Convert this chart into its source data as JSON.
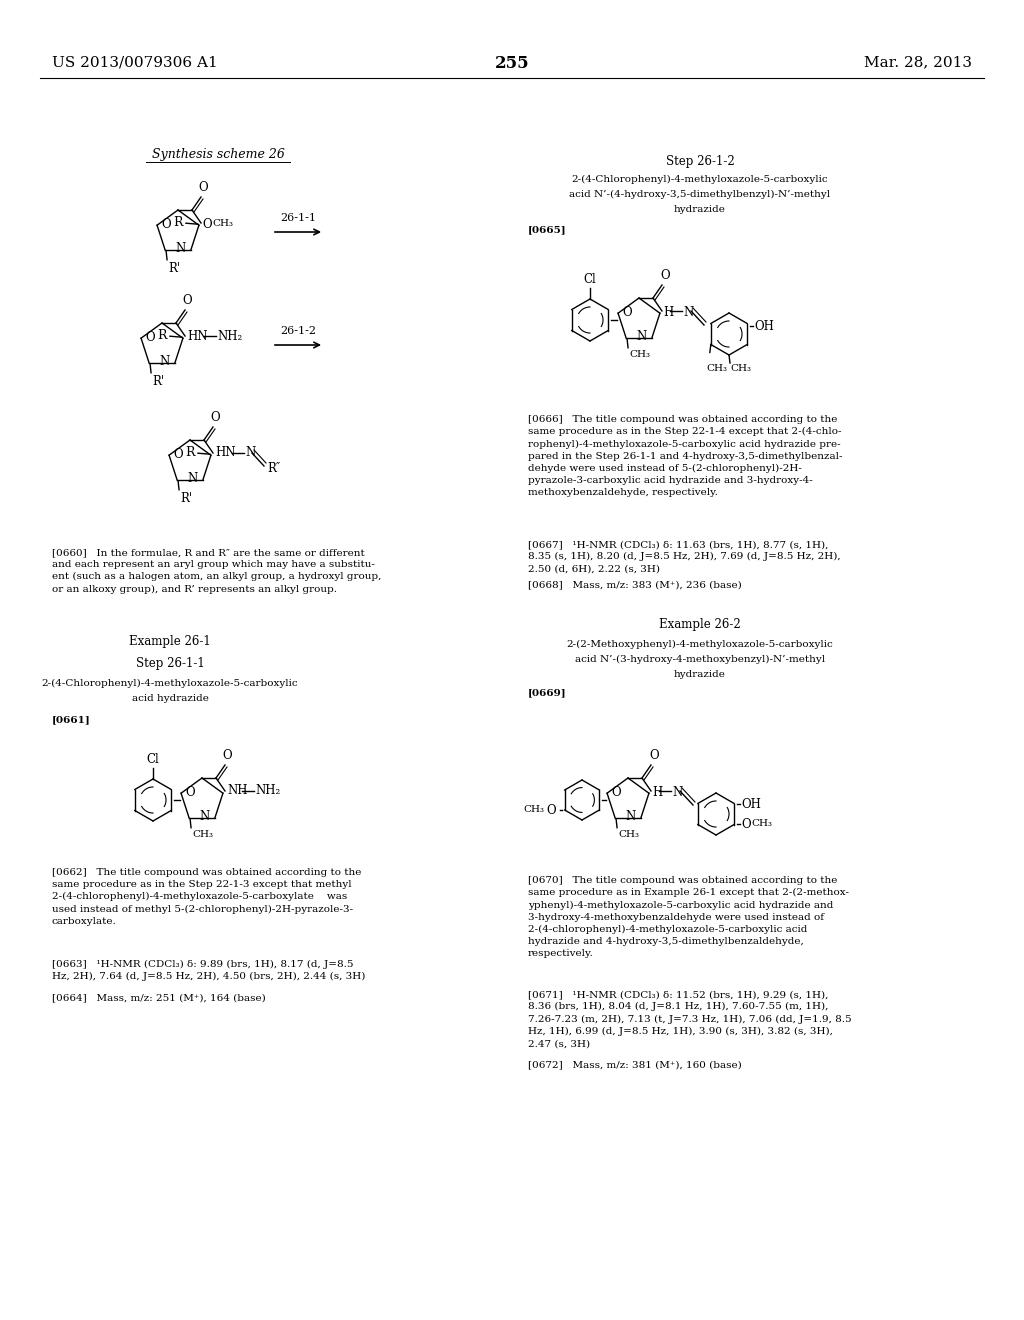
{
  "page_number": "255",
  "patent_number": "US 2013/0079306 A1",
  "patent_date": "Mar. 28, 2013",
  "background_color": "#ffffff",
  "text_color": "#000000",
  "header_left": "US 2013/0079306 A1",
  "header_center": "255",
  "header_right": "Mar. 28, 2013",
  "synthesis_scheme_label": "Synthesis scheme 26",
  "step_label_1": "26-1-1",
  "step_label_2": "26-1-2",
  "right_step_label": "Step 26-1-2",
  "right_compound_title_1": "2-(4-Chlorophenyl)-4-methyloxazole-5-carboxylic",
  "right_compound_title_2": "acid N’-(4-hydroxy-3,5-dimethylbenzyl)-N’-methyl",
  "right_compound_title_3": "hydrazide",
  "para_0665": "[0665]",
  "para_0666": "[0666]   The title compound was obtained according to the\nsame procedure as in the Step 22-1-4 except that 2-(4-chlo-\nrophenyl)-4-methyloxazole-5-carboxylic acid hydrazide pre-\npared in the Step 26-1-1 and 4-hydroxy-3,5-dimethylbenzal-\ndehyde were used instead of 5-(2-chlorophenyl)-2H-\npyrazole-3-carboxylic acid hydrazide and 3-hydroxy-4-\nmethoxybenzaldehyde, respectively.",
  "para_0667": "[0667]   ¹H-NMR (CDCl₃) δ: 11.63 (brs, 1H), 8.77 (s, 1H),\n8.35 (s, 1H), 8.20 (d, J=8.5 Hz, 2H), 7.69 (d, J=8.5 Hz, 2H),\n2.50 (d, 6H), 2.22 (s, 3H)",
  "para_0668": "[0668]   Mass, m/z: 383 (M⁺), 236 (base)",
  "example_26_2_label": "Example 26-2",
  "example_26_2_title_1": "2-(2-Methoxyphenyl)-4-methyloxazole-5-carboxylic",
  "example_26_2_title_2": "acid N’-(3-hydroxy-4-methoxybenzyl)-N’-methyl",
  "example_26_2_title_3": "hydrazide",
  "para_0669": "[0669]",
  "para_0670": "[0670]   The title compound was obtained according to the\nsame procedure as in Example 26-1 except that 2-(2-methox-\nyphenyl)-4-methyloxazole-5-carboxylic acid hydrazide and\n3-hydroxy-4-methoxybenzaldehyde were used instead of\n2-(4-chlorophenyl)-4-methyloxazole-5-carboxylic acid\nhydrazide and 4-hydroxy-3,5-dimethylbenzaldehyde,\nrespectively.",
  "para_0671": "[0671]   ¹H-NMR (CDCl₃) δ: 11.52 (brs, 1H), 9.29 (s, 1H),\n8.36 (brs, 1H), 8.04 (d, J=8.1 Hz, 1H), 7.60-7.55 (m, 1H),\n7.26-7.23 (m, 2H), 7.13 (t, J=7.3 Hz, 1H), 7.06 (dd, J=1.9, 8.5\nHz, 1H), 6.99 (d, J=8.5 Hz, 1H), 3.90 (s, 3H), 3.82 (s, 3H),\n2.47 (s, 3H)",
  "para_0672": "[0672]   Mass, m/z: 381 (M⁺), 160 (base)",
  "example_26_1_label": "Example 26-1",
  "step_26_1_1_label": "Step 26-1-1",
  "compound_step1_1": "2-(4-Chlorophenyl)-4-methyloxazole-5-carboxylic",
  "compound_step1_2": "acid hydrazide",
  "para_0661": "[0661]",
  "para_0662": "[0662]   The title compound was obtained according to the\nsame procedure as in the Step 22-1-3 except that methyl\n2-(4-chlorophenyl)-4-methyloxazole-5-carboxylate    was\nused instead of methyl 5-(2-chlorophenyl)-2H-pyrazole-3-\ncarboxylate.",
  "para_0663": "[0663]   ¹H-NMR (CDCl₃) δ: 9.89 (brs, 1H), 8.17 (d, J=8.5\nHz, 2H), 7.64 (d, J=8.5 Hz, 2H), 4.50 (brs, 2H), 2.44 (s, 3H)",
  "para_0664": "[0664]   Mass, m/z: 251 (M⁺), 164 (base)",
  "para_0660": "[0660]   In the formulae, R and R″ are the same or different\nand each represent an aryl group which may have a substitu-\nent (such as a halogen atom, an alkyl group, a hydroxyl group,\nor an alkoxy group), and R’ represents an alkyl group."
}
